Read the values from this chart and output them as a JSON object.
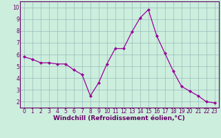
{
  "x": [
    0,
    1,
    2,
    3,
    4,
    5,
    6,
    7,
    8,
    9,
    10,
    11,
    12,
    13,
    14,
    15,
    16,
    17,
    18,
    19,
    20,
    21,
    22,
    23
  ],
  "y": [
    5.8,
    5.6,
    5.3,
    5.3,
    5.2,
    5.2,
    4.7,
    4.3,
    2.5,
    3.6,
    5.2,
    6.5,
    6.5,
    7.9,
    9.1,
    9.8,
    7.6,
    6.1,
    4.6,
    3.3,
    2.9,
    2.5,
    2.0,
    1.9
  ],
  "line_color": "#990099",
  "marker": "D",
  "marker_size": 2.0,
  "bg_color": "#cceedd",
  "grid_color": "#99bbbb",
  "xlabel": "Windchill (Refroidissement éolien,°C)",
  "xlabel_color": "#660066",
  "xlabel_fontsize": 6.5,
  "tick_color": "#660066",
  "tick_fontsize": 5.5,
  "yticks": [
    2,
    3,
    4,
    5,
    6,
    7,
    8,
    9,
    10
  ],
  "xticks": [
    0,
    1,
    2,
    3,
    4,
    5,
    6,
    7,
    8,
    9,
    10,
    11,
    12,
    13,
    14,
    15,
    16,
    17,
    18,
    19,
    20,
    21,
    22,
    23
  ],
  "ylim": [
    1.5,
    10.5
  ],
  "xlim": [
    -0.5,
    23.5
  ],
  "spine_color": "#660066"
}
